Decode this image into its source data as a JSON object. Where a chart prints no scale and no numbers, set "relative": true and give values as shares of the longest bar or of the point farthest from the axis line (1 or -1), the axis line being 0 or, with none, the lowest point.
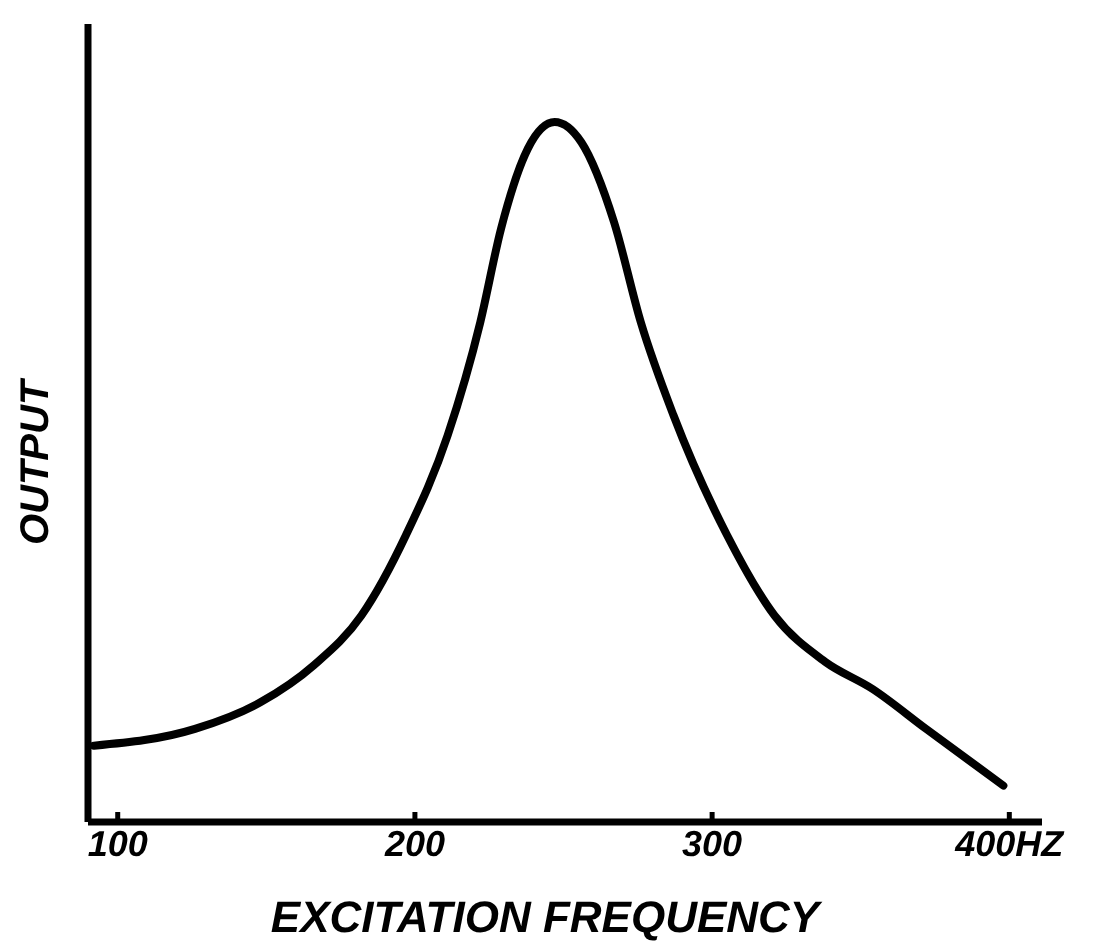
{
  "chart_data": {
    "type": "line",
    "xlabel": "EXCITATION FREQUENCY",
    "ylabel": "OUTPUT",
    "relative": true,
    "xlim": [
      90,
      411
    ],
    "xticks": [
      100,
      200,
      300,
      {
        "value": 400,
        "label": "400HZ"
      }
    ],
    "grid": false,
    "marker": "none",
    "line_style": "solid",
    "series": [
      {
        "color": "#000000",
        "x": [
          92,
          126,
          148,
          166,
          182,
          197,
          211,
          222,
          229,
          238,
          247,
          256,
          267,
          276,
          287,
          305,
          321,
          338,
          354,
          372,
          398
        ],
        "values": [
          0.109,
          0.133,
          0.171,
          0.224,
          0.295,
          0.41,
          0.552,
          0.714,
          0.848,
          0.962,
          1,
          0.971,
          0.857,
          0.714,
          0.581,
          0.41,
          0.295,
          0.229,
          0.19,
          0.133,
          0.052
        ]
      }
    ]
  }
}
